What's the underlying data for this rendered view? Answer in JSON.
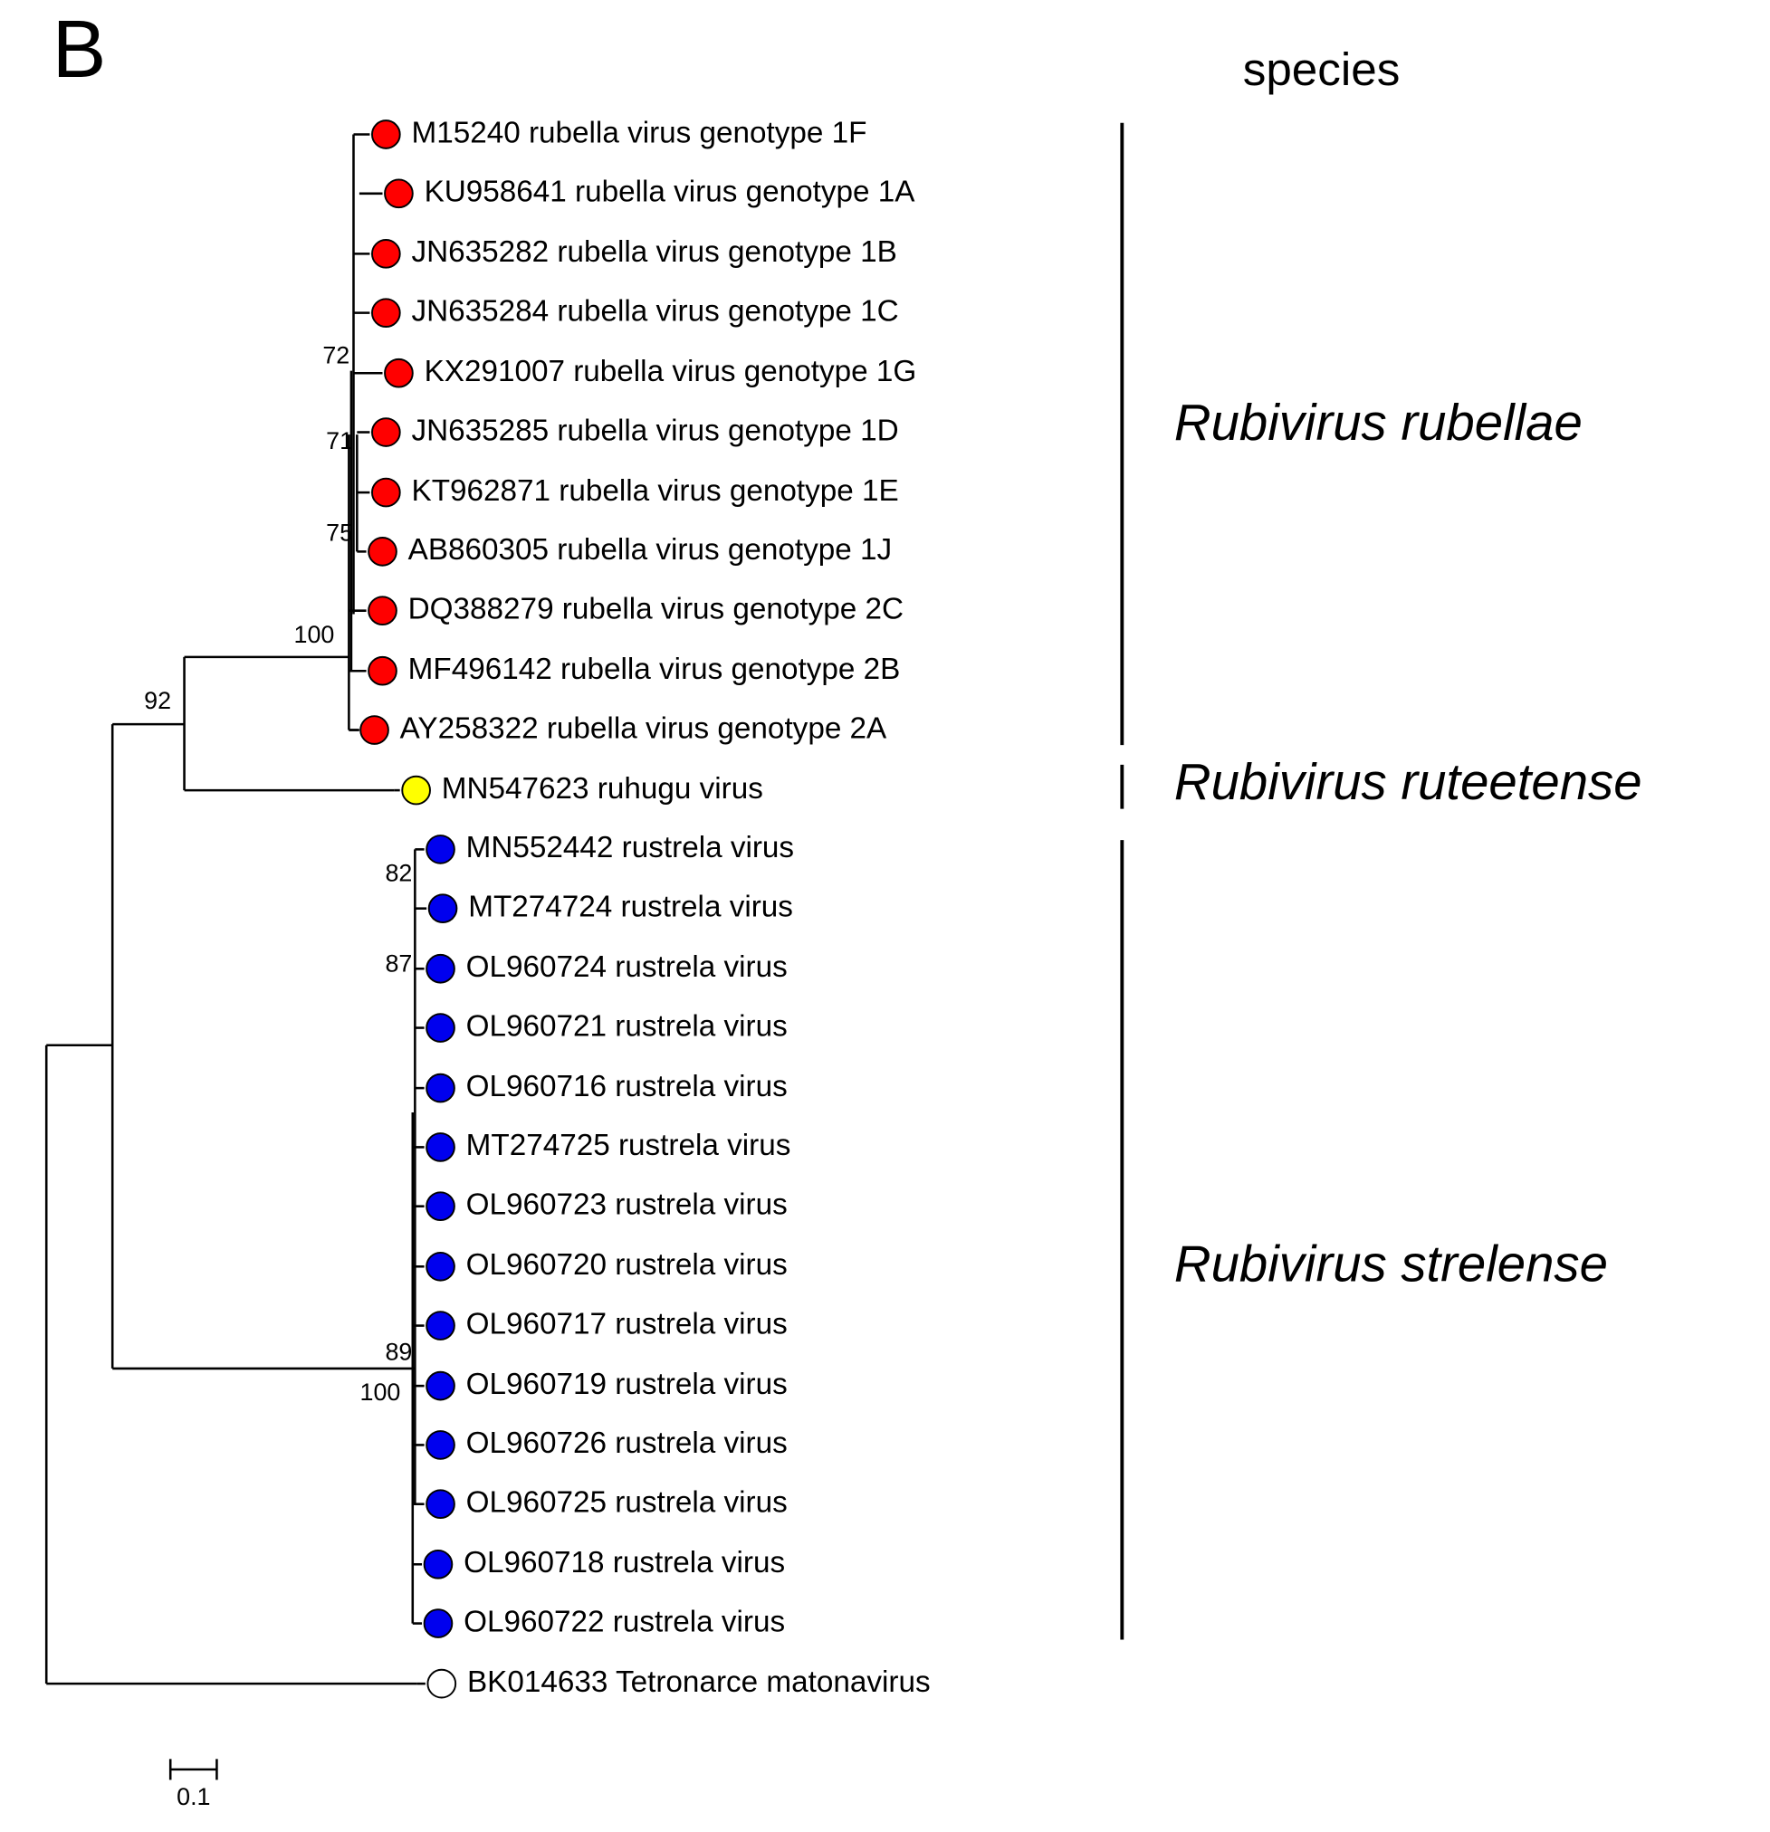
{
  "panel_label": "B",
  "species_header": "species",
  "leaves": [
    {
      "label": "M15240 rubella virus genotype 1F",
      "color": "#ff0000"
    },
    {
      "label": "KU958641 rubella virus genotype 1A",
      "color": "#ff0000"
    },
    {
      "label": "JN635282 rubella virus genotype 1B",
      "color": "#ff0000"
    },
    {
      "label": "JN635284 rubella virus genotype 1C",
      "color": "#ff0000"
    },
    {
      "label": "KX291007 rubella virus genotype 1G",
      "color": "#ff0000"
    },
    {
      "label": "JN635285 rubella virus genotype 1D",
      "color": "#ff0000"
    },
    {
      "label": "KT962871 rubella virus genotype 1E",
      "color": "#ff0000"
    },
    {
      "label": "AB860305 rubella virus genotype 1J",
      "color": "#ff0000"
    },
    {
      "label": "DQ388279 rubella virus genotype 2C",
      "color": "#ff0000"
    },
    {
      "label": "MF496142 rubella virus genotype 2B",
      "color": "#ff0000"
    },
    {
      "label": "AY258322 rubella virus genotype 2A",
      "color": "#ff0000"
    },
    {
      "label": "MN547623 ruhugu virus",
      "color": "#ffff00"
    },
    {
      "label": "MN552442 rustrela virus",
      "color": "#0000ee"
    },
    {
      "label": "MT274724 rustrela virus",
      "color": "#0000ee"
    },
    {
      "label": "OL960724 rustrela virus",
      "color": "#0000ee"
    },
    {
      "label": "OL960721 rustrela virus",
      "color": "#0000ee"
    },
    {
      "label": "OL960716 rustrela virus",
      "color": "#0000ee"
    },
    {
      "label": "MT274725 rustrela virus",
      "color": "#0000ee"
    },
    {
      "label": "OL960723 rustrela virus",
      "color": "#0000ee"
    },
    {
      "label": "OL960720 rustrela virus",
      "color": "#0000ee"
    },
    {
      "label": "OL960717 rustrela virus",
      "color": "#0000ee"
    },
    {
      "label": "OL960719 rustrela virus",
      "color": "#0000ee"
    },
    {
      "label": "OL960726 rustrela virus",
      "color": "#0000ee"
    },
    {
      "label": "OL960725 rustrela virus",
      "color": "#0000ee"
    },
    {
      "label": "OL960718 rustrela virus",
      "color": "#0000ee"
    },
    {
      "label": "OL960722 rustrela virus",
      "color": "#0000ee"
    },
    {
      "label": "BK014633 Tetronarce matonavirus",
      "color": "#ffffff"
    }
  ],
  "support_values": [
    72,
    71,
    75,
    100,
    92,
    82,
    87,
    89,
    100
  ],
  "species": [
    "Rubivirus rubellae",
    "Rubivirus ruteetense",
    "Rubivirus strelense"
  ],
  "scale_label": "0.1"
}
